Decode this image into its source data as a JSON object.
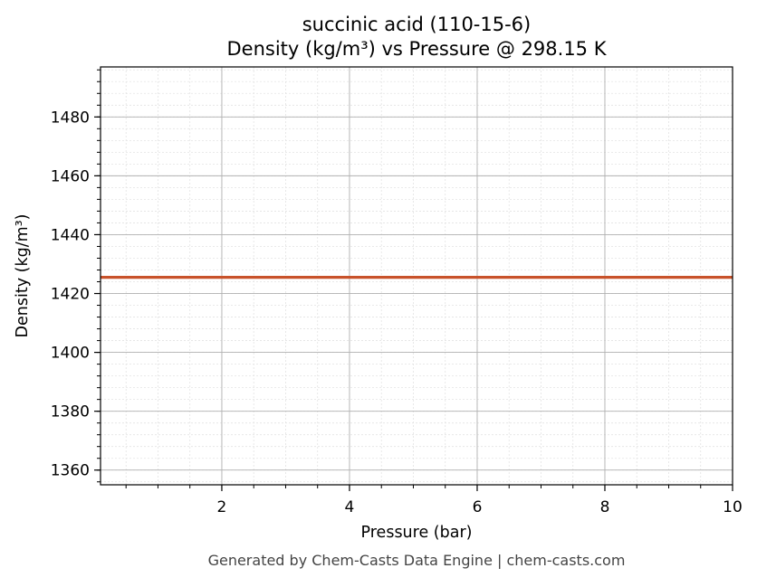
{
  "chart_data": {
    "type": "line",
    "title_line1": "succinic acid (110-15-6)",
    "title_line2": "Density (kg/m³) vs Pressure @ 298.15 K",
    "xlabel": "Pressure (bar)",
    "ylabel": "Density (kg/m³)",
    "xlim": [
      0.1,
      10
    ],
    "ylim": [
      1355,
      1497
    ],
    "x_ticks": [
      2,
      4,
      6,
      8,
      10
    ],
    "y_ticks": [
      1360,
      1380,
      1400,
      1420,
      1440,
      1460,
      1480
    ],
    "x_minor_step": 0.5,
    "y_minor_step": 4,
    "grid": true,
    "series": [
      {
        "color": "#c8522a",
        "x": [
          0.1,
          10
        ],
        "y": [
          1425.5,
          1425.5
        ]
      }
    ]
  },
  "footer": "Generated by Chem-Casts Data Engine | chem-casts.com"
}
